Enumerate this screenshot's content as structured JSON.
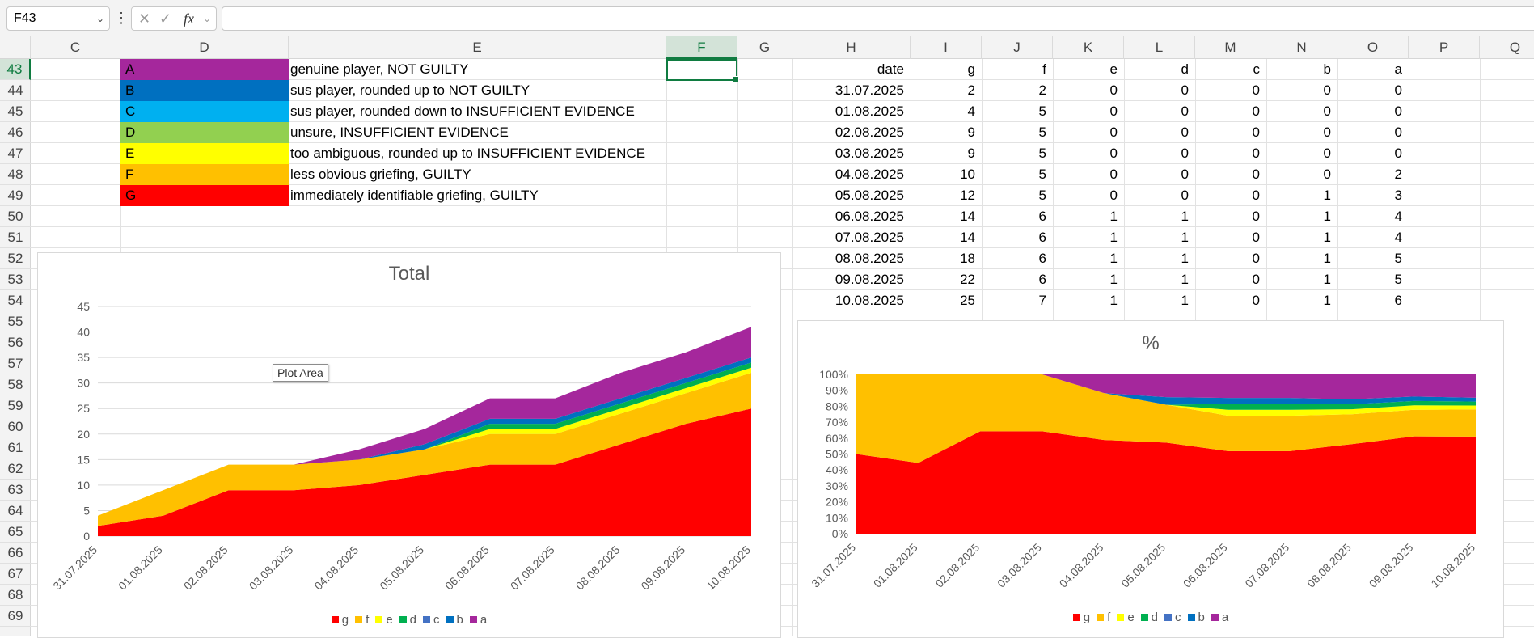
{
  "formula_bar": {
    "name_box": "F43",
    "fx": "fx",
    "formula": ""
  },
  "columns": [
    "C",
    "D",
    "E",
    "F",
    "G",
    "H",
    "I",
    "J",
    "K",
    "L",
    "M",
    "N",
    "O",
    "P",
    "Q"
  ],
  "rows": [
    "43",
    "44",
    "45",
    "46",
    "47",
    "48",
    "49",
    "50",
    "51",
    "52",
    "53",
    "54",
    "55",
    "56",
    "57",
    "58",
    "59",
    "60",
    "61",
    "62",
    "63",
    "64",
    "65",
    "66",
    "67",
    "68",
    "69"
  ],
  "legend_rows": [
    {
      "key": "A",
      "desc": "genuine player, NOT GUILTY",
      "color": "#a5279c"
    },
    {
      "key": "B",
      "desc": "sus player, rounded up to NOT GUILTY",
      "color": "#0070c0"
    },
    {
      "key": "C",
      "desc": "sus player, rounded down to INSUFFICIENT EVIDENCE",
      "color": "#00b0f0"
    },
    {
      "key": "D",
      "desc": "unsure, INSUFFICIENT EVIDENCE",
      "color": "#92d050"
    },
    {
      "key": "E",
      "desc": "too ambiguous, rounded up to INSUFFICIENT EVIDENCE",
      "color": "#ffff00"
    },
    {
      "key": "F",
      "desc": "less obvious griefing, GUILTY",
      "color": "#ffc000"
    },
    {
      "key": "G",
      "desc": "immediately identifiable griefing, GUILTY",
      "color": "#ff0000"
    }
  ],
  "table": {
    "headers": [
      "date",
      "g",
      "f",
      "e",
      "d",
      "c",
      "b",
      "a"
    ],
    "rows": [
      [
        "31.07.2025",
        "2",
        "2",
        "0",
        "0",
        "0",
        "0",
        "0"
      ],
      [
        "01.08.2025",
        "4",
        "5",
        "0",
        "0",
        "0",
        "0",
        "0"
      ],
      [
        "02.08.2025",
        "9",
        "5",
        "0",
        "0",
        "0",
        "0",
        "0"
      ],
      [
        "03.08.2025",
        "9",
        "5",
        "0",
        "0",
        "0",
        "0",
        "0"
      ],
      [
        "04.08.2025",
        "10",
        "5",
        "0",
        "0",
        "0",
        "0",
        "2"
      ],
      [
        "05.08.2025",
        "12",
        "5",
        "0",
        "0",
        "0",
        "1",
        "3"
      ],
      [
        "06.08.2025",
        "14",
        "6",
        "1",
        "1",
        "0",
        "1",
        "4"
      ],
      [
        "07.08.2025",
        "14",
        "6",
        "1",
        "1",
        "0",
        "1",
        "4"
      ],
      [
        "08.08.2025",
        "18",
        "6",
        "1",
        "1",
        "0",
        "1",
        "5"
      ],
      [
        "09.08.2025",
        "22",
        "6",
        "1",
        "1",
        "0",
        "1",
        "5"
      ],
      [
        "10.08.2025",
        "25",
        "7",
        "1",
        "1",
        "0",
        "1",
        "6"
      ]
    ]
  },
  "tooltip": "Plot Area",
  "chart_data": [
    {
      "type": "area",
      "stacked": true,
      "title": "Total",
      "categories": [
        "31.07.2025",
        "01.08.2025",
        "02.08.2025",
        "03.08.2025",
        "04.08.2025",
        "05.08.2025",
        "06.08.2025",
        "07.08.2025",
        "08.08.2025",
        "09.08.2025",
        "10.08.2025"
      ],
      "series": [
        {
          "name": "g",
          "color": "#ff0000",
          "values": [
            2,
            4,
            9,
            9,
            10,
            12,
            14,
            14,
            18,
            22,
            25
          ]
        },
        {
          "name": "f",
          "color": "#ffc000",
          "values": [
            2,
            5,
            5,
            5,
            5,
            5,
            6,
            6,
            6,
            6,
            7
          ]
        },
        {
          "name": "e",
          "color": "#ffff00",
          "values": [
            0,
            0,
            0,
            0,
            0,
            0,
            1,
            1,
            1,
            1,
            1
          ]
        },
        {
          "name": "d",
          "color": "#00b050",
          "values": [
            0,
            0,
            0,
            0,
            0,
            0,
            1,
            1,
            1,
            1,
            1
          ]
        },
        {
          "name": "c",
          "color": "#4472c4",
          "values": [
            0,
            0,
            0,
            0,
            0,
            0,
            0,
            0,
            0,
            0,
            0
          ]
        },
        {
          "name": "b",
          "color": "#0070c0",
          "values": [
            0,
            0,
            0,
            0,
            0,
            1,
            1,
            1,
            1,
            1,
            1
          ]
        },
        {
          "name": "a",
          "color": "#a5279c",
          "values": [
            0,
            0,
            0,
            0,
            2,
            3,
            4,
            4,
            5,
            5,
            6
          ]
        }
      ],
      "ylim": [
        0,
        45
      ],
      "yticks": [
        "0",
        "5",
        "10",
        "15",
        "20",
        "25",
        "30",
        "35",
        "40",
        "45"
      ],
      "grid": true,
      "legend": "bottom"
    },
    {
      "type": "area",
      "stacked": true,
      "percent": true,
      "title": "%",
      "categories": [
        "31.07.2025",
        "01.08.2025",
        "02.08.2025",
        "03.08.2025",
        "04.08.2025",
        "05.08.2025",
        "06.08.2025",
        "07.08.2025",
        "08.08.2025",
        "09.08.2025",
        "10.08.2025"
      ],
      "series": [
        {
          "name": "g",
          "color": "#ff0000"
        },
        {
          "name": "f",
          "color": "#ffc000"
        },
        {
          "name": "e",
          "color": "#ffff00"
        },
        {
          "name": "d",
          "color": "#00b050"
        },
        {
          "name": "c",
          "color": "#4472c4"
        },
        {
          "name": "b",
          "color": "#0070c0"
        },
        {
          "name": "a",
          "color": "#a5279c"
        }
      ],
      "ylim": [
        0,
        100
      ],
      "yticks": [
        "0%",
        "10%",
        "20%",
        "30%",
        "40%",
        "50%",
        "60%",
        "70%",
        "80%",
        "90%",
        "100%"
      ],
      "grid": true,
      "legend": "bottom"
    }
  ]
}
